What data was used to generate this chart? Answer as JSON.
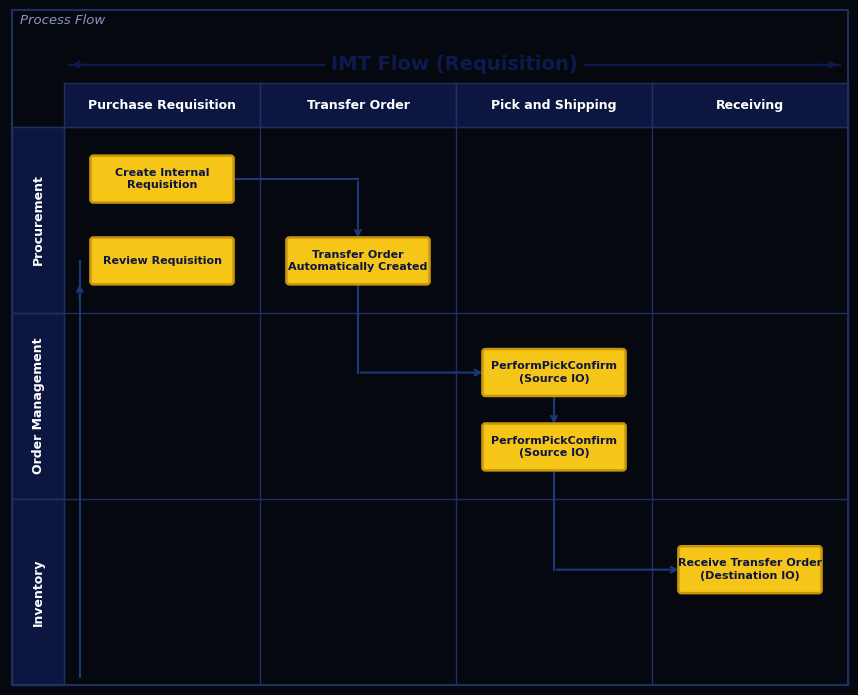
{
  "bg_color": "#060810",
  "header_bg": "#0d1640",
  "header_text_color": "#ffffff",
  "box_fill": "#f5c518",
  "box_edge_color": "#c8960a",
  "box_text_color": "#0d1640",
  "arrow_color": "#1a3a7a",
  "title_text": "Process Flow",
  "title_color": "#8898bb",
  "flow_title": "IMT Flow (Requisition)",
  "flow_title_color": "#0d1a50",
  "col_headers": [
    "Purchase Requisition",
    "Transfer Order",
    "Pick and Shipping",
    "Receiving"
  ],
  "row_headers": [
    "Procurement",
    "Order Management",
    "Inventory"
  ],
  "boxes": [
    {
      "label": "Create Internal\nRequisition",
      "col": 0,
      "row": 0,
      "yf": 0.28
    },
    {
      "label": "Review Requisition",
      "col": 0,
      "row": 0,
      "yf": 0.72
    },
    {
      "label": "Transfer Order\nAutomatically Created",
      "col": 1,
      "row": 0,
      "yf": 0.72
    },
    {
      "label": "PerformPickConfirm\n(Source IO)",
      "col": 2,
      "row": 1,
      "yf": 0.32
    },
    {
      "label": "PerformPickConfirm\n(Source IO)",
      "col": 2,
      "row": 1,
      "yf": 0.72
    },
    {
      "label": "Receive Transfer Order\n(Destination IO)",
      "col": 3,
      "row": 2,
      "yf": 0.38
    }
  ],
  "outer_border_color": "#1e3060",
  "row_div_color": "#1e3060",
  "col_div_color": "#1e3060"
}
